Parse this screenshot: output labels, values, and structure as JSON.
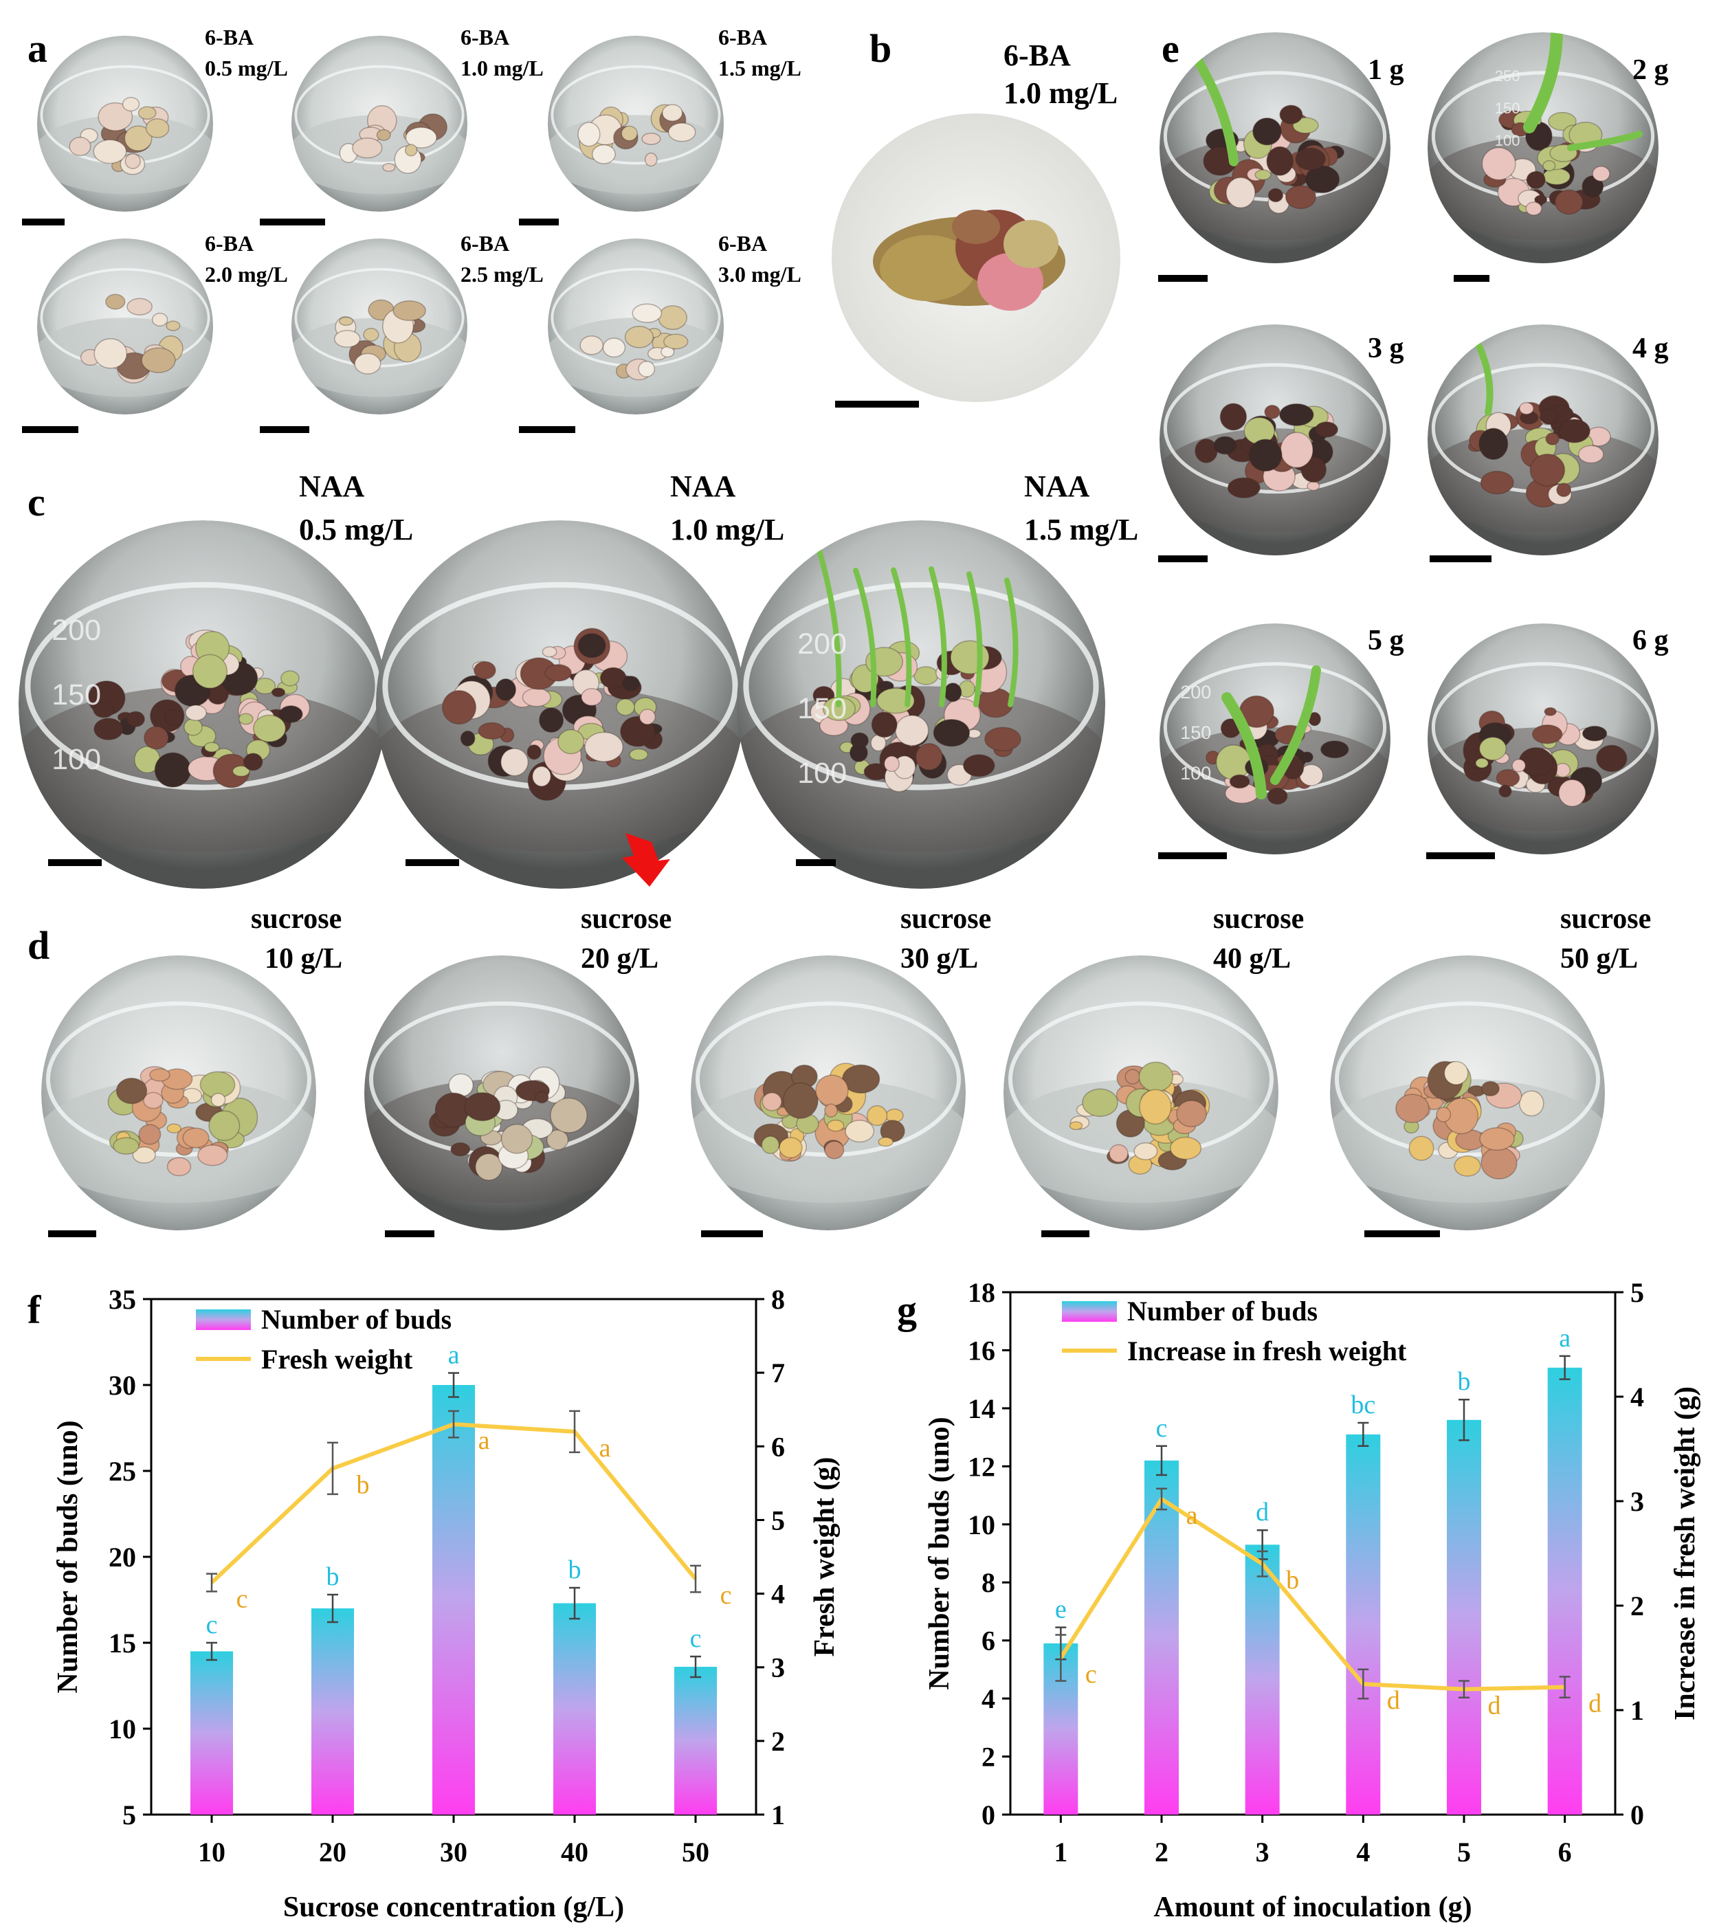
{
  "colors": {
    "bar_top": "#2ecfe0",
    "bar_mid": "#c0a4ec",
    "bar_bottom": "#ff3ef0",
    "line": "#f9cc45",
    "letter_bar": "#22bde0",
    "letter_line": "#e8a21a",
    "dish_rim": "#d9dcdc",
    "dish_inner": "#bfc5c4",
    "medium_dark": "#6b5a55",
    "tissue_pink": "#e9c3bd",
    "tissue_green": "#b7bf78",
    "tissue_brown": "#7c4a3e",
    "leaf_green": "#79c24a",
    "arrow_red": "#ee1111",
    "scale_bar": "#000000"
  },
  "panels": {
    "a": {
      "label": "a",
      "items": [
        {
          "line1": "6-BA",
          "line2": "0.5 mg/L"
        },
        {
          "line1": "6-BA",
          "line2": "1.0 mg/L"
        },
        {
          "line1": "6-BA",
          "line2": "1.5 mg/L"
        },
        {
          "line1": "6-BA",
          "line2": "2.0 mg/L"
        },
        {
          "line1": "6-BA",
          "line2": "2.5 mg/L"
        },
        {
          "line1": "6-BA",
          "line2": "3.0 mg/L"
        }
      ]
    },
    "b": {
      "label": "b",
      "line1": "6-BA",
      "line2": "1.0 mg/L"
    },
    "c": {
      "label": "c",
      "items": [
        {
          "line1": "NAA",
          "line2": "0.5 mg/L"
        },
        {
          "line1": "NAA",
          "line2": "1.0 mg/L"
        },
        {
          "line1": "NAA",
          "line2": "1.5 mg/L"
        }
      ],
      "flask_marks": [
        "200",
        "150",
        "100"
      ],
      "flask_marks_right": [
        "200",
        "150",
        "100"
      ]
    },
    "d": {
      "label": "d",
      "items": [
        {
          "line1": "sucrose",
          "line2": "10 g/L"
        },
        {
          "line1": "sucrose",
          "line2": "20 g/L"
        },
        {
          "line1": "sucrose",
          "line2": "30 g/L"
        },
        {
          "line1": "sucrose",
          "line2": "40 g/L"
        },
        {
          "line1": "sucrose",
          "line2": "50 g/L"
        }
      ]
    },
    "e": {
      "label": "e",
      "items": [
        "1 g",
        "2 g",
        "3 g",
        "4 g",
        "5 g",
        "6 g"
      ],
      "flask_marks": [
        "200",
        "150",
        "100"
      ],
      "beaker_marks": [
        "250",
        "150",
        "100"
      ]
    }
  },
  "chart_data": [
    {
      "panel": "f",
      "type": "bar",
      "categories": [
        "10",
        "20",
        "30",
        "40",
        "50"
      ],
      "xlabel": "Sucrose concentration (g/L)",
      "ylabel": "Number of buds (uno)",
      "y2label": "Fresh weight (g)",
      "ylim": [
        5,
        35
      ],
      "yticks": [
        "5",
        "10",
        "15",
        "20",
        "25",
        "30",
        "35"
      ],
      "y2lim": [
        1,
        8
      ],
      "y2ticks": [
        "1",
        "2",
        "3",
        "4",
        "5",
        "6",
        "7",
        "8"
      ],
      "legend": [
        "Number of buds",
        "Fresh weight"
      ],
      "legend_position": "top-left",
      "series": [
        {
          "name": "Number of buds",
          "type": "bar",
          "axis": "left",
          "values": [
            14.5,
            17.0,
            30.0,
            17.3,
            13.6
          ],
          "errors": [
            0.5,
            0.8,
            0.7,
            0.9,
            0.6
          ],
          "letters": [
            "c",
            "b",
            "a",
            "b",
            "c"
          ]
        },
        {
          "name": "Fresh weight",
          "type": "line",
          "axis": "right",
          "values": [
            4.15,
            5.7,
            6.3,
            6.2,
            4.2
          ],
          "errors": [
            0.12,
            0.35,
            0.18,
            0.28,
            0.18
          ],
          "letters": [
            "c",
            "b",
            "a",
            "a",
            "c"
          ]
        }
      ]
    },
    {
      "panel": "g",
      "type": "bar",
      "categories": [
        "1",
        "2",
        "3",
        "4",
        "5",
        "6"
      ],
      "xlabel": "Amount of inoculation (g)",
      "ylabel": "Number of buds (uno)",
      "y2label": "Increase in fresh weight (g)",
      "ylim": [
        0,
        18
      ],
      "yticks": [
        "0",
        "2",
        "4",
        "6",
        "8",
        "10",
        "12",
        "14",
        "16",
        "18"
      ],
      "y2lim": [
        0,
        5
      ],
      "y2ticks": [
        "0",
        "1",
        "2",
        "3",
        "4",
        "5"
      ],
      "legend": [
        "Number of buds",
        "Increase in fresh weight"
      ],
      "legend_position": "top-left",
      "series": [
        {
          "name": "Number of buds",
          "type": "bar",
          "axis": "left",
          "values": [
            5.9,
            12.2,
            9.3,
            13.1,
            13.6,
            15.4
          ],
          "errors": [
            0.55,
            0.5,
            0.5,
            0.4,
            0.7,
            0.4
          ],
          "letters": [
            "e",
            "c",
            "d",
            "bc",
            "b",
            "a"
          ]
        },
        {
          "name": "Increase in fresh weight",
          "type": "line",
          "axis": "right",
          "values": [
            1.5,
            3.02,
            2.4,
            1.25,
            1.2,
            1.22
          ],
          "errors": [
            0.22,
            0.1,
            0.12,
            0.14,
            0.08,
            0.1
          ],
          "letters": [
            "c",
            "a",
            "b",
            "d",
            "d",
            "d"
          ]
        }
      ]
    }
  ]
}
